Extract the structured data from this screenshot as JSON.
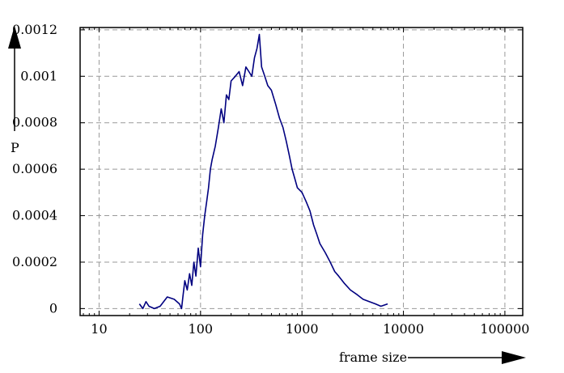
{
  "chart_data": {
    "type": "line",
    "title": "",
    "xlabel": "frame size",
    "ylabel": "P",
    "x_scale": "log",
    "xlim": [
      6.5,
      150000
    ],
    "ylim": [
      -3e-05,
      0.00121
    ],
    "x_ticks": [
      10,
      100,
      1000,
      10000,
      100000
    ],
    "x_tick_labels": [
      "10",
      "100",
      "1000",
      "10000",
      "100000"
    ],
    "y_ticks": [
      0,
      0.0002,
      0.0004,
      0.0006,
      0.0008,
      0.001,
      0.0012
    ],
    "y_tick_labels": [
      "0",
      "0.0002",
      "0.0004",
      "0.0006",
      "0.0008",
      "0.001",
      "0.0012"
    ],
    "grid": true,
    "legend": "none",
    "colors": {
      "series": "#000080",
      "grid": "#999999",
      "axis": "#000000"
    },
    "series": [
      {
        "values_note_free": true,
        "points": [
          [
            25,
            2e-05
          ],
          [
            27,
            0.0
          ],
          [
            29,
            3e-05
          ],
          [
            31,
            1e-05
          ],
          [
            35,
            0.0
          ],
          [
            40,
            1e-05
          ],
          [
            47,
            5e-05
          ],
          [
            55,
            4e-05
          ],
          [
            62,
            2e-05
          ],
          [
            65,
            0.0
          ],
          [
            67,
            5e-05
          ],
          [
            70,
            0.00012
          ],
          [
            74,
            8e-05
          ],
          [
            78,
            0.00015
          ],
          [
            82,
            0.0001
          ],
          [
            86,
            0.0002
          ],
          [
            90,
            0.00014
          ],
          [
            95,
            0.00026
          ],
          [
            100,
            0.00018
          ],
          [
            105,
            0.00032
          ],
          [
            110,
            0.0004
          ],
          [
            115,
            0.00046
          ],
          [
            120,
            0.00052
          ],
          [
            125,
            0.0006
          ],
          [
            130,
            0.00064
          ],
          [
            140,
            0.0007
          ],
          [
            150,
            0.00078
          ],
          [
            160,
            0.00086
          ],
          [
            170,
            0.0008
          ],
          [
            180,
            0.00092
          ],
          [
            190,
            0.0009
          ],
          [
            200,
            0.00098
          ],
          [
            220,
            0.001
          ],
          [
            240,
            0.00102
          ],
          [
            260,
            0.00096
          ],
          [
            280,
            0.00104
          ],
          [
            300,
            0.00102
          ],
          [
            320,
            0.001
          ],
          [
            340,
            0.00108
          ],
          [
            360,
            0.00112
          ],
          [
            380,
            0.00118
          ],
          [
            400,
            0.00104
          ],
          [
            430,
            0.001
          ],
          [
            460,
            0.00096
          ],
          [
            500,
            0.00094
          ],
          [
            550,
            0.00088
          ],
          [
            600,
            0.00082
          ],
          [
            650,
            0.00078
          ],
          [
            700,
            0.00072
          ],
          [
            750,
            0.00066
          ],
          [
            800,
            0.0006
          ],
          [
            850,
            0.00056
          ],
          [
            900,
            0.00052
          ],
          [
            1000,
            0.0005
          ],
          [
            1100,
            0.00046
          ],
          [
            1200,
            0.00042
          ],
          [
            1300,
            0.00036
          ],
          [
            1400,
            0.00032
          ],
          [
            1500,
            0.00028
          ],
          [
            1700,
            0.00024
          ],
          [
            1900,
            0.0002
          ],
          [
            2100,
            0.00016
          ],
          [
            2300,
            0.00014
          ],
          [
            2600,
            0.00011
          ],
          [
            3000,
            8e-05
          ],
          [
            3500,
            6e-05
          ],
          [
            4000,
            4e-05
          ],
          [
            4600,
            3e-05
          ],
          [
            5300,
            2e-05
          ],
          [
            6000,
            1e-05
          ],
          [
            7000,
            2e-05
          ]
        ]
      }
    ]
  }
}
